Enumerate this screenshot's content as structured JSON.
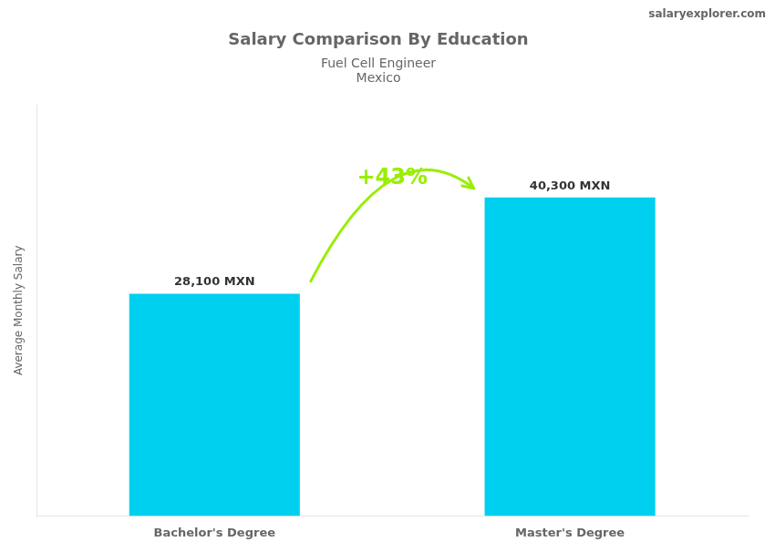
{
  "chart_data": {
    "type": "bar",
    "title": "Salary Comparison By Education",
    "subtitle": [
      "Fuel Cell Engineer",
      "Mexico"
    ],
    "y_label": "Average Monthly Salary",
    "categories": [
      "Bachelor's Degree",
      "Master's Degree"
    ],
    "values": [
      28100,
      40300
    ],
    "value_labels": [
      "28,100 MXN",
      "40,300 MXN"
    ],
    "data_labels": true,
    "color": "#00d0f0",
    "ylim": [
      0,
      52000
    ],
    "tick_labels": "x",
    "grid": false,
    "annotations": [
      "+43%",
      "salaryexplorer.com"
    ],
    "annotation_color": "#99ee00"
  }
}
